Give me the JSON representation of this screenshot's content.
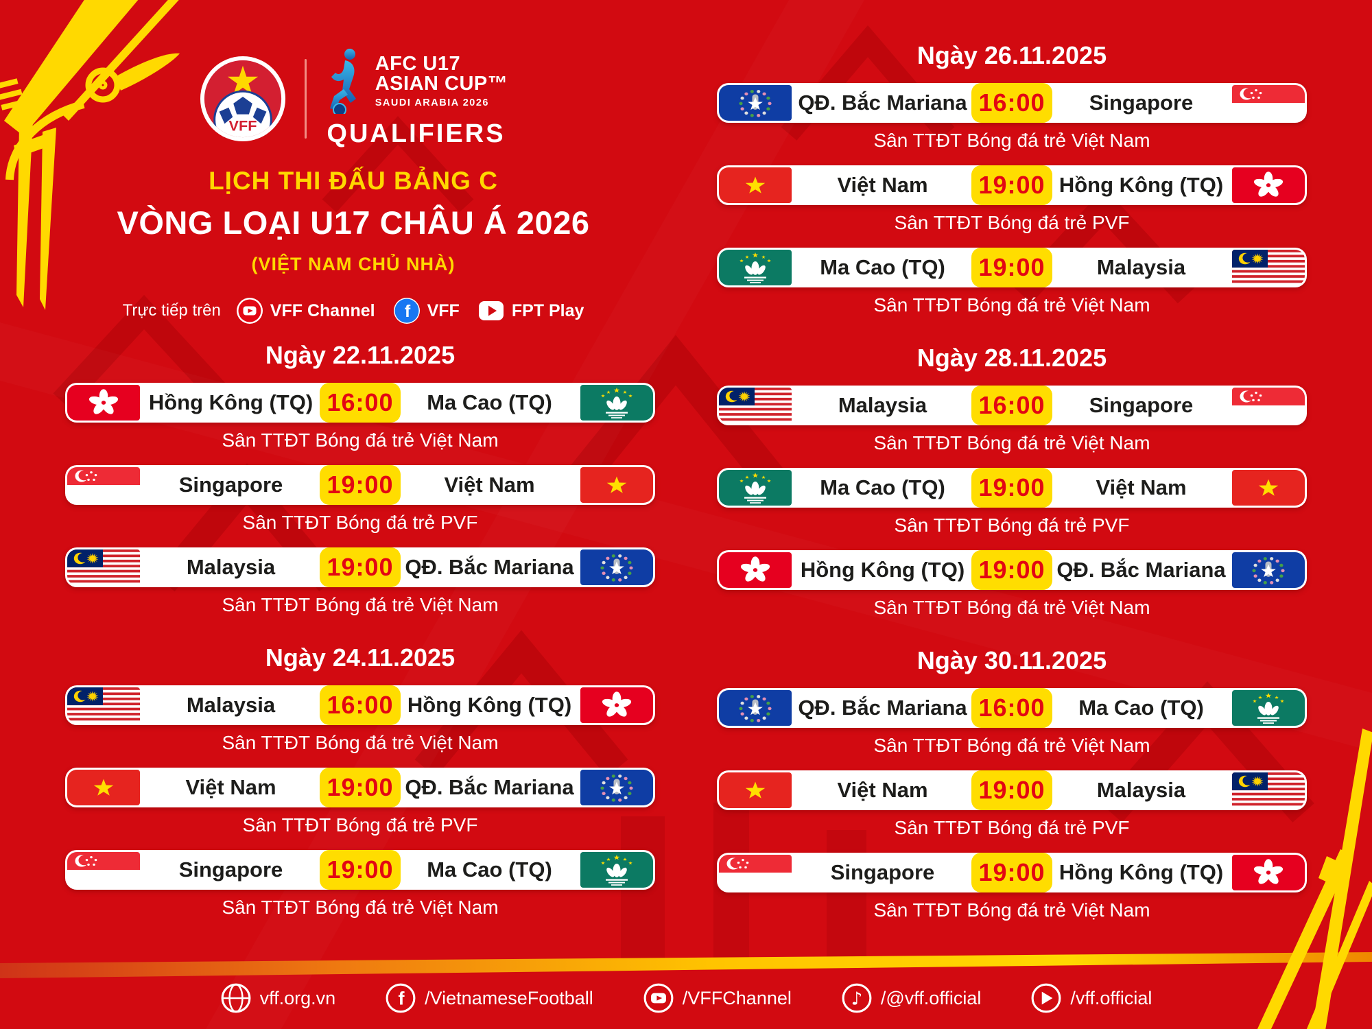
{
  "header": {
    "vff_logo_label": "VFF",
    "afc": {
      "line1": "AFC U17",
      "line2": "ASIAN CUP™",
      "line3": "SAUDI ARABIA 2026",
      "qualifiers": "QUALIFIERS"
    },
    "title1": "LỊCH THI ĐẤU BẢNG C",
    "title2": "VÒNG LOẠI U17 CHÂU Á 2026",
    "title3": "(VIỆT NAM CHỦ NHÀ)",
    "broadcast_label": "Trực tiếp trên",
    "channels": [
      {
        "icon": "youtube-icon",
        "label": "VFF Channel"
      },
      {
        "icon": "facebook-icon",
        "label": "VFF"
      },
      {
        "icon": "fpt-play-icon",
        "label": "FPT Play"
      }
    ]
  },
  "schedule": {
    "columns": [
      {
        "side": "left",
        "days": [
          {
            "date": "Ngày 22.11.2025",
            "matches": [
              {
                "home": "Hồng Kông (TQ)",
                "home_flag": "hong-kong",
                "time": "16:00",
                "away": "Ma Cao (TQ)",
                "away_flag": "macau",
                "venue": "Sân TTĐT Bóng đá trẻ Việt Nam"
              },
              {
                "home": "Singapore",
                "home_flag": "singapore",
                "time": "19:00",
                "away": "Việt Nam",
                "away_flag": "vietnam",
                "venue": "Sân TTĐT Bóng đá trẻ PVF"
              },
              {
                "home": "Malaysia",
                "home_flag": "malaysia",
                "time": "19:00",
                "away": "QĐ. Bắc Mariana",
                "away_flag": "n-mariana",
                "venue": "Sân TTĐT Bóng đá trẻ Việt Nam"
              }
            ]
          },
          {
            "date": "Ngày 24.11.2025",
            "matches": [
              {
                "home": "Malaysia",
                "home_flag": "malaysia",
                "time": "16:00",
                "away": "Hồng Kông (TQ)",
                "away_flag": "hong-kong",
                "venue": "Sân TTĐT Bóng đá trẻ Việt Nam"
              },
              {
                "home": "Việt Nam",
                "home_flag": "vietnam",
                "time": "19:00",
                "away": "QĐ. Bắc Mariana",
                "away_flag": "n-mariana",
                "venue": "Sân TTĐT Bóng đá trẻ PVF"
              },
              {
                "home": "Singapore",
                "home_flag": "singapore",
                "time": "19:00",
                "away": "Ma Cao (TQ)",
                "away_flag": "macau",
                "venue": "Sân TTĐT Bóng đá trẻ Việt Nam"
              }
            ]
          }
        ]
      },
      {
        "side": "right",
        "days": [
          {
            "date": "Ngày 26.11.2025",
            "matches": [
              {
                "home": "QĐ. Bắc Mariana",
                "home_flag": "n-mariana",
                "time": "16:00",
                "away": "Singapore",
                "away_flag": "singapore",
                "venue": "Sân TTĐT Bóng đá trẻ Việt Nam"
              },
              {
                "home": "Việt Nam",
                "home_flag": "vietnam",
                "time": "19:00",
                "away": "Hồng Kông (TQ)",
                "away_flag": "hong-kong",
                "venue": "Sân TTĐT Bóng đá trẻ PVF"
              },
              {
                "home": "Ma Cao (TQ)",
                "home_flag": "macau",
                "time": "19:00",
                "away": "Malaysia",
                "away_flag": "malaysia",
                "venue": "Sân TTĐT Bóng đá trẻ Việt Nam"
              }
            ]
          },
          {
            "date": "Ngày 28.11.2025",
            "matches": [
              {
                "home": "Malaysia",
                "home_flag": "malaysia",
                "time": "16:00",
                "away": "Singapore",
                "away_flag": "singapore",
                "venue": "Sân TTĐT Bóng đá trẻ Việt Nam"
              },
              {
                "home": "Ma Cao (TQ)",
                "home_flag": "macau",
                "time": "19:00",
                "away": "Việt Nam",
                "away_flag": "vietnam",
                "venue": "Sân TTĐT Bóng đá trẻ PVF"
              },
              {
                "home": "Hồng Kông (TQ)",
                "home_flag": "hong-kong",
                "time": "19:00",
                "away": "QĐ. Bắc Mariana",
                "away_flag": "n-mariana",
                "venue": "Sân TTĐT Bóng đá trẻ Việt Nam"
              }
            ]
          },
          {
            "date": "Ngày 30.11.2025",
            "matches": [
              {
                "home": "QĐ. Bắc Mariana",
                "home_flag": "n-mariana",
                "time": "16:00",
                "away": "Ma Cao (TQ)",
                "away_flag": "macau",
                "venue": "Sân TTĐT Bóng đá trẻ Việt Nam"
              },
              {
                "home": "Việt Nam",
                "home_flag": "vietnam",
                "time": "19:00",
                "away": "Malaysia",
                "away_flag": "malaysia",
                "venue": "Sân TTĐT Bóng đá trẻ PVF"
              },
              {
                "home": "Singapore",
                "home_flag": "singapore",
                "time": "19:00",
                "away": "Hồng Kông (TQ)",
                "away_flag": "hong-kong",
                "venue": "Sân TTĐT Bóng đá trẻ Việt Nam"
              }
            ]
          }
        ]
      }
    ]
  },
  "footer": {
    "items": [
      {
        "icon": "globe-icon",
        "label": "vff.org.vn"
      },
      {
        "icon": "facebook-icon",
        "label": "/VietnameseFootball"
      },
      {
        "icon": "youtube-icon",
        "label": "/VFFChannel"
      },
      {
        "icon": "tiktok-icon",
        "label": "/@vff.official"
      },
      {
        "icon": "play-icon",
        "label": "/vff.official"
      }
    ]
  },
  "colors": {
    "background_red": "#d20a11",
    "accent_yellow": "#ffd900",
    "time_red": "#e30613",
    "bar_white": "#ffffff",
    "team_text": "#1d1d1b",
    "stripe_orange": "#ef7a10"
  }
}
